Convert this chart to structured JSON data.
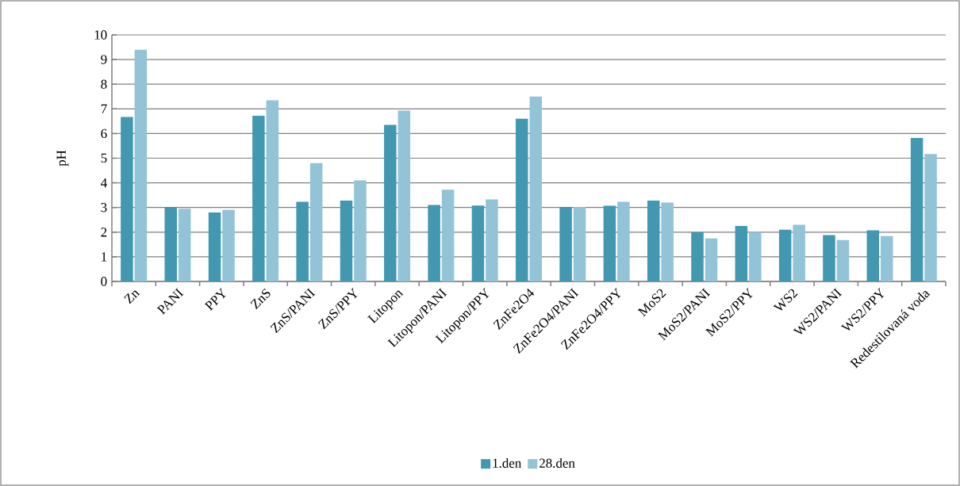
{
  "chart_data": {
    "type": "bar",
    "ylabel": "pH",
    "categories": [
      "Zn",
      "PANI",
      "PPY",
      "ZnS",
      "ZnS/PANI",
      "ZnS/PPY",
      "Litopon",
      "Litopon/PANI",
      "Litopon/PPY",
      "ZnFe2O4",
      "ZnFe2O4/PANI",
      "ZnFe2O4/PPY",
      "MoS2",
      "MoS2/PANI",
      "MoS2/PPY",
      "WS2",
      "WS2/PANI",
      "WS2/PPY",
      "Redestilovaná voda"
    ],
    "series": [
      {
        "name": "1.den",
        "color": "#4198b0",
        "values": [
          6.67,
          3.0,
          2.8,
          6.72,
          3.23,
          3.28,
          6.35,
          3.1,
          3.08,
          6.6,
          3.0,
          3.07,
          3.28,
          2.0,
          2.25,
          2.1,
          1.88,
          2.07,
          5.82
        ]
      },
      {
        "name": "28.den",
        "color": "#93c3d6",
        "values": [
          9.4,
          2.95,
          2.9,
          7.35,
          4.8,
          4.1,
          6.93,
          3.72,
          3.33,
          7.5,
          3.02,
          3.23,
          3.2,
          1.74,
          2.0,
          2.3,
          1.68,
          1.84,
          5.17
        ]
      }
    ],
    "ylim": [
      0,
      10
    ],
    "yticks": [
      0,
      1,
      2,
      3,
      4,
      5,
      6,
      7,
      8,
      9,
      10
    ],
    "grid": "y",
    "legend": "bottom"
  }
}
